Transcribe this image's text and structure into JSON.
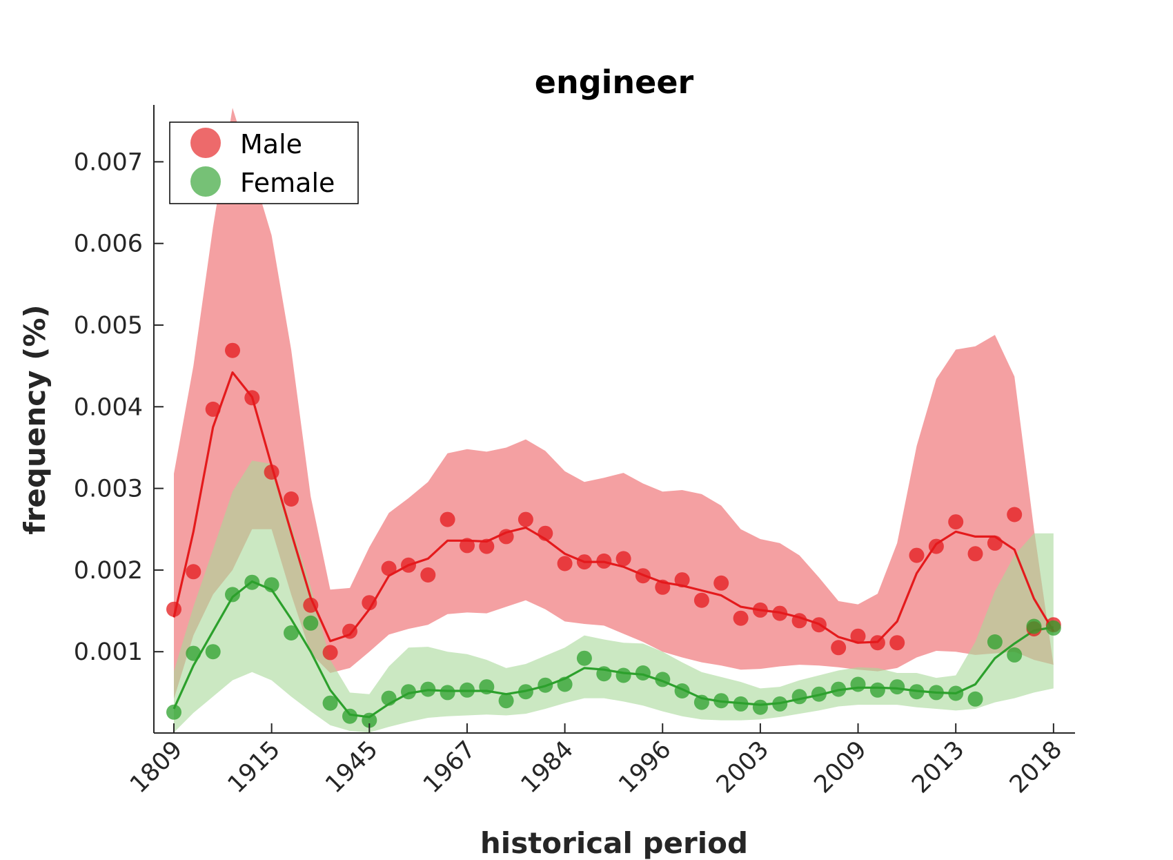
{
  "chart_data": {
    "type": "line",
    "title": "engineer",
    "xlabel": "historical period",
    "ylabel": "frequency (%)",
    "x_tick_labels": [
      "1809",
      "1915",
      "1945",
      "1967",
      "1984",
      "1996",
      "2003",
      "2009",
      "2013",
      "2018"
    ],
    "y_ticks": [
      0.001,
      0.002,
      0.003,
      0.004,
      0.005,
      0.006,
      0.007
    ],
    "y_tick_labels": [
      "0.001",
      "0.002",
      "0.003",
      "0.004",
      "0.005",
      "0.006",
      "0.007"
    ],
    "ylim": [
      1e-05,
      0.00766
    ],
    "n_points": 46,
    "grid": false,
    "legend_position": "top-left",
    "series": [
      {
        "name": "Male",
        "color": "#e41a1c",
        "band_color": "#f4a0a2",
        "points": [
          0.00152,
          0.00198,
          0.00397,
          0.00469,
          0.00411,
          0.0032,
          0.00287,
          0.00157,
          0.00099,
          0.00125,
          0.0016,
          0.00202,
          0.00206,
          0.00194,
          0.00262,
          0.0023,
          0.00229,
          0.00241,
          0.00262,
          0.00245,
          0.00208,
          0.0021,
          0.00211,
          0.00214,
          0.00193,
          0.00179,
          0.00188,
          0.00163,
          0.00184,
          0.00141,
          0.00151,
          0.00147,
          0.00138,
          0.00133,
          0.00105,
          0.00119,
          0.00111,
          0.00111,
          0.00218,
          0.00229,
          0.00259,
          0.0022,
          0.00233,
          0.00268,
          0.00128,
          0.00133
        ],
        "line": [
          0.00142,
          0.00247,
          0.00375,
          0.00442,
          0.00412,
          0.00328,
          0.00246,
          0.00166,
          0.00113,
          0.00121,
          0.00152,
          0.00193,
          0.00206,
          0.00214,
          0.00236,
          0.00236,
          0.00235,
          0.00246,
          0.00252,
          0.00238,
          0.0022,
          0.0021,
          0.0021,
          0.00204,
          0.00194,
          0.00185,
          0.00181,
          0.00175,
          0.00169,
          0.00155,
          0.00151,
          0.00148,
          0.00142,
          0.00134,
          0.00118,
          0.00111,
          0.00112,
          0.00137,
          0.00196,
          0.00232,
          0.00247,
          0.00241,
          0.00241,
          0.00225,
          0.00165,
          0.00125
        ],
        "upper": [
          0.00318,
          0.0045,
          0.0062,
          0.00766,
          0.0069,
          0.0061,
          0.0047,
          0.0029,
          0.00176,
          0.00178,
          0.00228,
          0.0027,
          0.00288,
          0.00308,
          0.00343,
          0.00348,
          0.00345,
          0.0035,
          0.0036,
          0.00346,
          0.00321,
          0.00308,
          0.00313,
          0.00319,
          0.00306,
          0.00296,
          0.00298,
          0.00293,
          0.00279,
          0.0025,
          0.00238,
          0.00233,
          0.00218,
          0.00191,
          0.00162,
          0.00158,
          0.00171,
          0.00233,
          0.00352,
          0.00434,
          0.0047,
          0.00474,
          0.00488,
          0.00437,
          0.0025,
          0.00084
        ],
        "lower": [
          0.00042,
          0.0012,
          0.0017,
          0.002,
          0.0025,
          0.0025,
          0.0017,
          0.00098,
          0.00074,
          0.0008,
          0.001,
          0.00121,
          0.00128,
          0.00133,
          0.00146,
          0.00148,
          0.00147,
          0.00155,
          0.00163,
          0.00152,
          0.00137,
          0.00134,
          0.00132,
          0.00122,
          0.00112,
          0.001,
          0.00093,
          0.00087,
          0.00083,
          0.00078,
          0.00079,
          0.00082,
          0.00084,
          0.00083,
          0.00081,
          0.00078,
          0.00076,
          0.0008,
          0.00093,
          0.00101,
          0.001,
          0.00096,
          0.00098,
          0.001,
          0.0009,
          0.00084
        ]
      },
      {
        "name": "Female",
        "color": "#2ca02c",
        "band_color": "#a8d99a",
        "points": [
          0.00026,
          0.00098,
          0.001,
          0.0017,
          0.00185,
          0.00182,
          0.00123,
          0.00135,
          0.00037,
          0.00021,
          0.00016,
          0.00043,
          0.00051,
          0.00054,
          0.0005,
          0.00053,
          0.00057,
          0.0004,
          0.00051,
          0.00059,
          0.0006,
          0.00092,
          0.00073,
          0.00071,
          0.00074,
          0.00066,
          0.00052,
          0.00038,
          0.0004,
          0.00036,
          0.00032,
          0.00036,
          0.00045,
          0.00048,
          0.00054,
          0.0006,
          0.00053,
          0.00057,
          0.00051,
          0.0005,
          0.00049,
          0.00042,
          0.00112,
          0.00096,
          0.00131,
          0.00129
        ],
        "line": [
          0.0003,
          0.00083,
          0.00125,
          0.00167,
          0.00186,
          0.00176,
          0.0014,
          0.001,
          0.00053,
          0.00023,
          0.0002,
          0.00036,
          0.00049,
          0.00053,
          0.00052,
          0.00052,
          0.00052,
          0.00048,
          0.00052,
          0.00058,
          0.00067,
          0.0008,
          0.00078,
          0.00074,
          0.00072,
          0.00064,
          0.00054,
          0.00043,
          0.00039,
          0.00037,
          0.00035,
          0.00037,
          0.00042,
          0.00047,
          0.00053,
          0.00056,
          0.00056,
          0.00055,
          0.00052,
          0.0005,
          0.00049,
          0.0006,
          0.00092,
          0.0011,
          0.00126,
          0.0013
        ],
        "upper": [
          0.00076,
          0.00155,
          0.00225,
          0.00296,
          0.00334,
          0.0033,
          0.00255,
          0.0018,
          0.0009,
          0.0005,
          0.00048,
          0.00082,
          0.00105,
          0.00106,
          0.001,
          0.00097,
          0.0009,
          0.0008,
          0.00085,
          0.00095,
          0.00105,
          0.0012,
          0.00115,
          0.00111,
          0.0011,
          0.001,
          0.00087,
          0.00075,
          0.00069,
          0.00063,
          0.00055,
          0.00057,
          0.00065,
          0.00071,
          0.00077,
          0.00081,
          0.0008,
          0.00074,
          0.00074,
          0.00068,
          0.00071,
          0.00112,
          0.00174,
          0.00218,
          0.00245,
          0.00245
        ],
        "lower": [
          1e-05,
          0.00025,
          0.00045,
          0.00065,
          0.00075,
          0.00065,
          0.00045,
          0.00027,
          0.0001,
          3e-05,
          1e-05,
          8e-05,
          0.00014,
          0.00019,
          0.00021,
          0.00022,
          0.00023,
          0.00022,
          0.00024,
          0.0003,
          0.00037,
          0.00043,
          0.00043,
          0.00039,
          0.00034,
          0.00027,
          0.00021,
          0.00017,
          0.00016,
          0.00016,
          0.00017,
          0.0002,
          0.00024,
          0.00028,
          0.00033,
          0.00035,
          0.00035,
          0.00035,
          0.00032,
          0.0003,
          0.00028,
          0.0003,
          0.00038,
          0.00043,
          0.0005,
          0.00055
        ]
      }
    ]
  }
}
